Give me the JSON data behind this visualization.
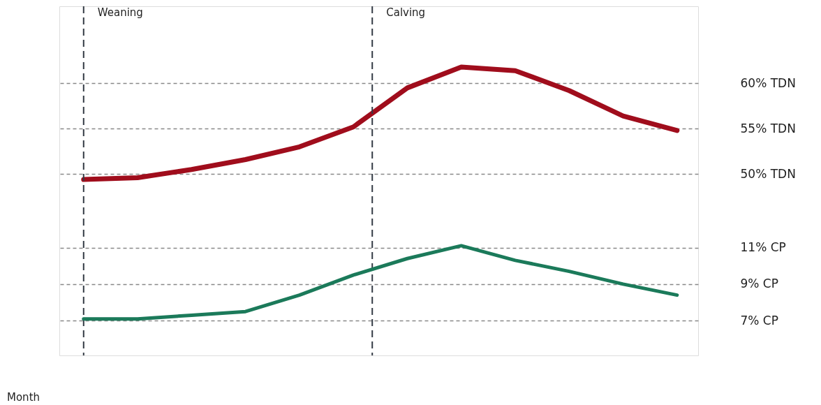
{
  "chart_data": {
    "type": "line",
    "xlabel": "Month",
    "categories": [
      null,
      null,
      null,
      null,
      null,
      null,
      null,
      null,
      null,
      null,
      null,
      null
    ],
    "series": [
      {
        "color": "#a00d1c",
        "values": [
          49.4,
          49.6,
          50.5,
          51.6,
          53.0,
          55.2,
          59.5,
          61.8,
          61.4,
          59.2,
          56.4,
          54.8
        ]
      },
      {
        "color": "#1b7a5a",
        "axis": "y2",
        "values": [
          7.1,
          7.1,
          7.3,
          7.5,
          8.4,
          9.5,
          10.4,
          11.1,
          10.3,
          9.7,
          9.0,
          8.4
        ]
      }
    ],
    "ylim": [
      30,
      68.5
    ],
    "yticks": [
      {
        "value": 60,
        "label": "60% TDN"
      },
      {
        "value": 55,
        "label": "55% TDN"
      },
      {
        "value": 50,
        "label": "50% TDN"
      }
    ],
    "y2lim": [
      5.1,
      24.2
    ],
    "y2ticks": [
      {
        "value": 11,
        "label": "11% CP"
      },
      {
        "value": 9,
        "label": "9%  CP"
      },
      {
        "value": 7,
        "label": "7% CP"
      }
    ],
    "annotations": [
      "Weaning",
      "Calving"
    ],
    "grid": "y",
    "tick_labels": "y",
    "marker": "none",
    "line_style": "solid"
  }
}
